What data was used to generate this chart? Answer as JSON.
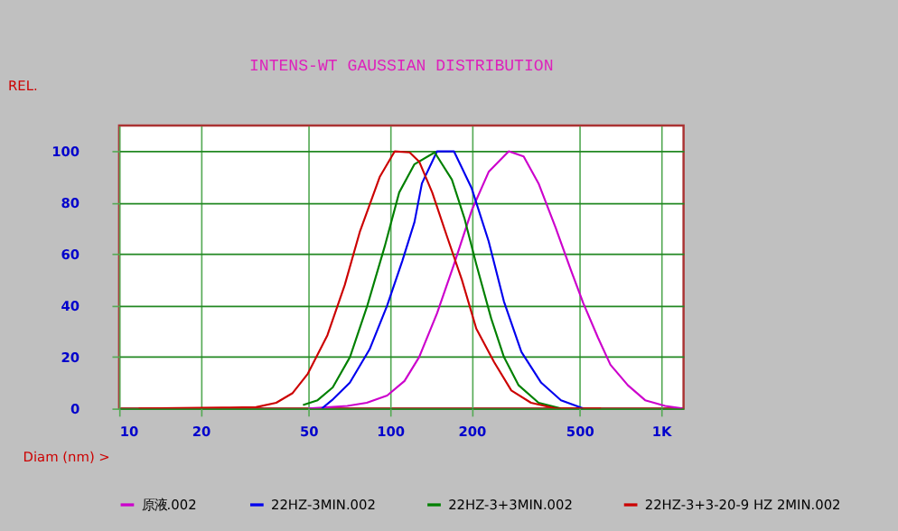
{
  "chart_data": {
    "type": "line",
    "title": "INTENS-WT GAUSSIAN DISTRIBUTION",
    "xlabel": "Diam (nm) >",
    "ylabel": "REL.",
    "log": "x",
    "grid": true,
    "legend": "bottom",
    "marker": "none",
    "line_style": "solid",
    "xlim": [
      10,
      1210
    ],
    "ylim": [
      0,
      110
    ],
    "xticks": [
      10,
      20,
      50,
      100,
      200,
      500,
      {
        "value": 1000,
        "label": "1K"
      }
    ],
    "yticks": [
      0,
      20,
      40,
      60,
      80,
      100
    ],
    "series": [
      {
        "name": "原液.002",
        "color": "#cc00cc",
        "x": [
          50,
          69.5,
          82,
          97.5,
          113,
          128,
          149,
          172,
          200,
          231,
          274,
          311,
          353,
          409,
          464,
          516,
          585,
          650,
          754,
          873,
          1035,
          1200
        ],
        "values": [
          0,
          1,
          2.2,
          5,
          10.7,
          20,
          37,
          56,
          77,
          92,
          100,
          98,
          87.5,
          70,
          54,
          41,
          27.5,
          17,
          9,
          3.2,
          1,
          0
        ]
      },
      {
        "name": "22HZ-3MIN.002",
        "color": "#0000ee",
        "x": [
          56,
          61,
          71,
          84,
          97.5,
          111,
          123,
          131,
          149,
          172,
          200,
          231,
          263,
          305,
          361,
          427,
          516
        ],
        "values": [
          0,
          3.2,
          10,
          23,
          40,
          57.5,
          72.5,
          87.5,
          100,
          100,
          85.6,
          65,
          41.6,
          22,
          10,
          3.2,
          0
        ]
      },
      {
        "name": "22HZ-3+3MIN.002",
        "color": "#008000",
        "x": [
          47.7,
          54,
          61.4,
          71.1,
          82.4,
          95.5,
          108,
          123,
          146,
          169,
          188,
          208,
          236,
          263,
          298,
          353,
          427
        ],
        "values": [
          1.3,
          3.2,
          8.2,
          20,
          40,
          63,
          84,
          95,
          99.6,
          89,
          74,
          56,
          35,
          20,
          9,
          2.2,
          0
        ]
      },
      {
        "name": "22HZ-3+3-20-9 HZ 2MIN.002",
        "color": "#cc0000",
        "x": [
          11.8,
          24,
          32,
          38,
          43.7,
          49.7,
          58.7,
          68,
          77.3,
          91.5,
          104,
          118,
          128,
          143,
          162,
          184,
          208,
          242,
          280,
          331,
          409,
          600
        ],
        "values": [
          0,
          0.3,
          0.5,
          2.2,
          6,
          13.5,
          28.5,
          48,
          68.7,
          90,
          100,
          99.6,
          96,
          84,
          67,
          50,
          31,
          18,
          7,
          2.2,
          0,
          0
        ]
      }
    ]
  }
}
